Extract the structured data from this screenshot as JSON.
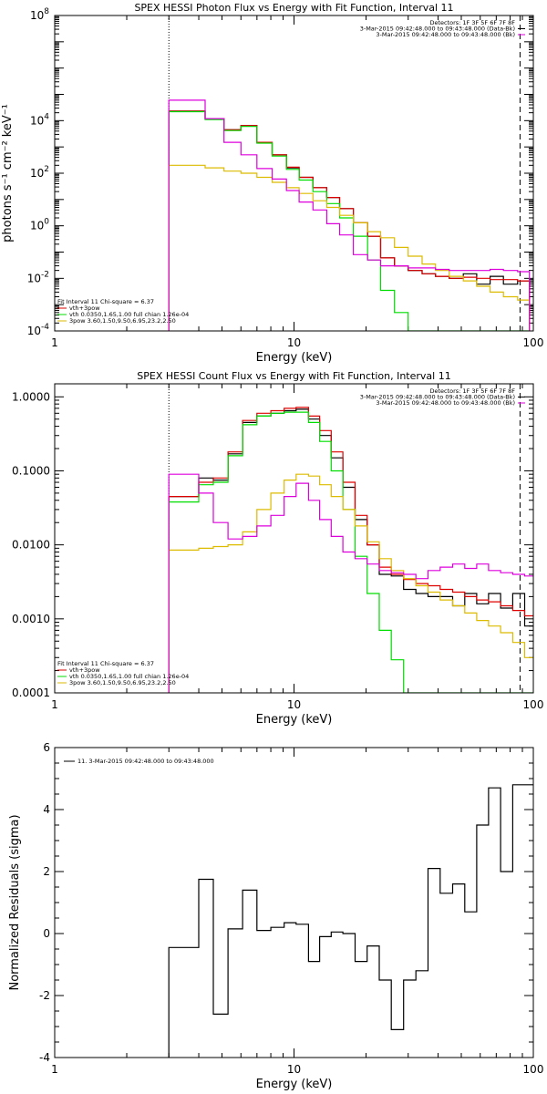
{
  "chart_data": [
    {
      "type": "line",
      "title": "SPEX HESSI Photon Flux vs Energy with Fit Function, Interval 11",
      "xlabel": "Energy (keV)",
      "ylabel": "photons s⁻¹ cm⁻² keV⁻¹",
      "xscale": "log",
      "yscale": "log",
      "xlim": [
        1,
        100
      ],
      "ylim": [
        0.0001,
        100000000.0
      ],
      "xticks": [
        {
          "v": 1,
          "label": "1"
        },
        {
          "v": 10,
          "label": "10"
        },
        {
          "v": 100,
          "label": "100"
        }
      ],
      "yticks": [
        {
          "v": 0.0001,
          "base": "10",
          "exp": "-4"
        },
        {
          "v": 0.01,
          "base": "10",
          "exp": "-2"
        },
        {
          "v": 1,
          "base": "10",
          "exp": "0"
        },
        {
          "v": 100,
          "base": "10",
          "exp": "2"
        },
        {
          "v": 10000,
          "base": "10",
          "exp": "4"
        },
        {
          "v": 100000000.0,
          "base": "10",
          "exp": "8"
        }
      ],
      "vlines": [
        {
          "x": 3,
          "style": "dotted"
        },
        {
          "x": 88,
          "style": "dashed"
        }
      ],
      "legend_right": [
        "Detectors: 1F 3F 5F 6F 7F 8F",
        "3-Mar-2015 09:42:48.000 to 09:43:48.000 (Data-Bk)",
        "3-Mar-2015 09:42:48.000 to 09:43:48.000 (Bk)"
      ],
      "legend_left": [
        {
          "text": "Fit Interval 11    Chi-square = 6.37",
          "color": ""
        },
        {
          "text": "vth+3pow",
          "color": "#dd0000"
        },
        {
          "text": "vth 0.0350,1.65,1.00  full chian 1.26e-04",
          "color": "#00dd00"
        },
        {
          "text": "3pow 3.60,1.50,9.50,6.95,23.2,2.50",
          "color": "#ddbb00"
        }
      ],
      "x": [
        3,
        3.5,
        4.25,
        5.1,
        6,
        7,
        8.1,
        9.3,
        10.5,
        12,
        13.7,
        15.5,
        17.7,
        20.3,
        23,
        26.3,
        30,
        34.3,
        39,
        44.5,
        51,
        58,
        66,
        75,
        86
      ],
      "series": [
        {
          "name": "",
          "color": "#000000",
          "values": [
            23000,
            23000,
            12000,
            4500,
            6500,
            1500,
            500,
            160,
            70,
            28,
            12,
            4.5,
            1.3,
            0.4,
            0.06,
            0.03,
            0.02,
            0.015,
            0.012,
            0.01,
            0.015,
            0.006,
            0.012,
            0.006,
            0.008
          ]
        },
        {
          "name": "",
          "color": "#dd0000",
          "values": [
            23000,
            23000,
            12000,
            4500,
            6500,
            1500,
            500,
            170,
            70,
            28,
            12,
            4.5,
            1.3,
            0.4,
            0.06,
            0.03,
            0.02,
            0.015,
            0.012,
            0.01,
            0.011,
            0.01,
            0.009,
            0.009,
            0.008
          ]
        },
        {
          "name": "",
          "color": "#00dd00",
          "values": [
            22000,
            22000,
            11000,
            4200,
            6000,
            1400,
            450,
            140,
            55,
            20,
            7,
            2,
            0.4,
            0.05,
            0.0035,
            0.0005,
            0.0001,
            0.0001,
            0.0001,
            0.0001,
            0.0001,
            0.0001,
            0.0001,
            0.0001,
            0.0001
          ]
        },
        {
          "name": "",
          "color": "#ddbb00",
          "values": [
            200,
            200,
            160,
            120,
            100,
            70,
            45,
            28,
            17,
            9,
            5,
            2.5,
            1.3,
            0.6,
            0.35,
            0.15,
            0.07,
            0.035,
            0.02,
            0.012,
            0.008,
            0.005,
            0.003,
            0.002,
            0.0015
          ]
        },
        {
          "name": "",
          "color": "#dd00dd",
          "values": [
            60000,
            60000,
            12000,
            1500,
            500,
            150,
            60,
            22,
            8,
            4,
            1.2,
            0.45,
            0.08,
            0.05,
            0.03,
            0.03,
            0.025,
            0.025,
            0.022,
            0.02,
            0.02,
            0.02,
            0.022,
            0.02,
            0.018
          ]
        }
      ]
    },
    {
      "type": "line",
      "title": "SPEX HESSI Count Flux vs Energy with Fit Function, Interval 11",
      "xlabel": "Energy (keV)",
      "ylabel": "",
      "xscale": "log",
      "yscale": "log",
      "xlim": [
        1,
        100
      ],
      "ylim": [
        0.0001,
        1.5
      ],
      "xticks": [
        {
          "v": 1,
          "label": "1"
        },
        {
          "v": 10,
          "label": "10"
        },
        {
          "v": 100,
          "label": "100"
        }
      ],
      "yticks": [
        {
          "v": 0.0001,
          "label": "0.0001"
        },
        {
          "v": 0.001,
          "label": "0.0010"
        },
        {
          "v": 0.01,
          "label": "0.0100"
        },
        {
          "v": 0.1,
          "label": "0.1000"
        },
        {
          "v": 1,
          "label": "1.0000"
        }
      ],
      "vlines": [
        {
          "x": 3,
          "style": "dotted"
        },
        {
          "x": 88,
          "style": "dashed"
        }
      ],
      "legend_right": [
        "Detectors: 1F 3F 5F 6F 7F 8F",
        "3-Mar-2015 09:42:48.000 to 09:43:48.000 (Data-Bk)",
        "3-Mar-2015 09:42:48.000 to 09:43:48.000 (Bk)"
      ],
      "legend_left": [
        {
          "text": "Fit Interval 11    Chi-square = 6.37",
          "color": ""
        },
        {
          "text": "vth+3pow",
          "color": "#dd0000"
        },
        {
          "text": "vth 0.0350,1.65,1.00  full chian 1.26e-04",
          "color": "#00dd00"
        },
        {
          "text": "3pow 3.60,1.50,9.50,6.95,23.2,2.50",
          "color": "#ddbb00"
        }
      ],
      "x": [
        3,
        3.5,
        4,
        4.6,
        5.3,
        6.1,
        7,
        8,
        9.1,
        10.2,
        11.5,
        12.8,
        14.3,
        16,
        18,
        20.2,
        22.7,
        25.5,
        28.7,
        32.3,
        36.3,
        40.8,
        46,
        51.7,
        58,
        65,
        73,
        82,
        92
      ],
      "series": [
        {
          "name": "",
          "color": "#000000",
          "values": [
            0.045,
            0.045,
            0.08,
            0.075,
            0.17,
            0.45,
            0.55,
            0.6,
            0.65,
            0.68,
            0.5,
            0.3,
            0.15,
            0.06,
            0.022,
            0.01,
            0.004,
            0.0038,
            0.0025,
            0.0022,
            0.002,
            0.002,
            0.0015,
            0.0022,
            0.0016,
            0.0022,
            0.0014,
            0.0022,
            0.0008
          ]
        },
        {
          "name": "",
          "color": "#dd0000",
          "values": [
            0.045,
            0.045,
            0.07,
            0.08,
            0.18,
            0.48,
            0.6,
            0.65,
            0.7,
            0.72,
            0.55,
            0.35,
            0.18,
            0.07,
            0.025,
            0.01,
            0.005,
            0.004,
            0.0034,
            0.003,
            0.0028,
            0.0025,
            0.0023,
            0.002,
            0.0018,
            0.0017,
            0.0015,
            0.0013,
            0.0011
          ]
        },
        {
          "name": "",
          "color": "#00dd00",
          "values": [
            0.038,
            0.038,
            0.065,
            0.07,
            0.16,
            0.42,
            0.55,
            0.6,
            0.62,
            0.62,
            0.45,
            0.25,
            0.1,
            0.03,
            0.007,
            0.0022,
            0.0007,
            0.00028,
            0.0001,
            0.0001,
            0.0001,
            0.0001,
            0.0001,
            0.0001,
            0.0001,
            0.0001,
            0.0001,
            0.0001,
            0.0001
          ]
        },
        {
          "name": "",
          "color": "#ddbb00",
          "values": [
            0.0085,
            0.0085,
            0.009,
            0.0095,
            0.01,
            0.015,
            0.03,
            0.05,
            0.075,
            0.09,
            0.085,
            0.065,
            0.045,
            0.03,
            0.018,
            0.011,
            0.0065,
            0.0045,
            0.0035,
            0.0028,
            0.0023,
            0.0018,
            0.0015,
            0.0012,
            0.00095,
            0.0008,
            0.00065,
            0.00048,
            0.0003
          ]
        },
        {
          "name": "",
          "color": "#dd00dd",
          "values": [
            0.09,
            0.09,
            0.05,
            0.02,
            0.012,
            0.013,
            0.018,
            0.025,
            0.045,
            0.068,
            0.04,
            0.022,
            0.013,
            0.008,
            0.0065,
            0.0055,
            0.0045,
            0.0042,
            0.004,
            0.0035,
            0.0045,
            0.005,
            0.0055,
            0.0048,
            0.0055,
            0.0045,
            0.0042,
            0.004,
            0.0038
          ]
        }
      ]
    },
    {
      "type": "line",
      "title": "",
      "xlabel": "Energy (keV)",
      "ylabel": "Normalized Residuals (sigma)",
      "xscale": "log",
      "yscale": "linear",
      "xlim": [
        1,
        100
      ],
      "ylim": [
        -4,
        6
      ],
      "xticks": [
        {
          "v": 1,
          "label": "1"
        },
        {
          "v": 10,
          "label": "10"
        },
        {
          "v": 100,
          "label": "100"
        }
      ],
      "yticks": [
        {
          "v": -4,
          "label": "-4"
        },
        {
          "v": -2,
          "label": "-2"
        },
        {
          "v": 0,
          "label": "0"
        },
        {
          "v": 2,
          "label": "2"
        },
        {
          "v": 4,
          "label": "4"
        },
        {
          "v": 6,
          "label": "6"
        }
      ],
      "legend_left": [
        {
          "text": "11.  3-Mar-2015 09:42:48.000 to 09:43:48.000",
          "color": "#000000"
        }
      ],
      "x": [
        3,
        3.5,
        4,
        4.6,
        5.3,
        6.1,
        7,
        8,
        9.1,
        10.2,
        11.5,
        12.8,
        14.3,
        16,
        18,
        20.2,
        22.7,
        25.5,
        28.7,
        32.3,
        36.3,
        40.8,
        46,
        51.7,
        58,
        65,
        73,
        82,
        92
      ],
      "series": [
        {
          "name": "",
          "color": "#000000",
          "values": [
            -0.45,
            -0.45,
            1.75,
            -2.6,
            0.15,
            1.4,
            0.1,
            0.2,
            0.35,
            0.3,
            -0.9,
            -0.1,
            0.05,
            0,
            -0.9,
            -0.4,
            -1.5,
            -3.1,
            -1.5,
            -1.2,
            2.1,
            1.3,
            1.6,
            0.7,
            3.5,
            4.7,
            2.0,
            4.8,
            4.8
          ]
        }
      ],
      "clip_first": true
    }
  ]
}
